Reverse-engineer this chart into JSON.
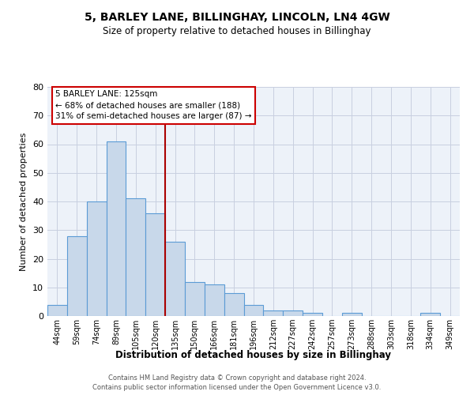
{
  "title1": "5, BARLEY LANE, BILLINGHAY, LINCOLN, LN4 4GW",
  "title2": "Size of property relative to detached houses in Billinghay",
  "xlabel": "Distribution of detached houses by size in Billinghay",
  "ylabel": "Number of detached properties",
  "categories": [
    "44sqm",
    "59sqm",
    "74sqm",
    "89sqm",
    "105sqm",
    "120sqm",
    "135sqm",
    "150sqm",
    "166sqm",
    "181sqm",
    "196sqm",
    "212sqm",
    "227sqm",
    "242sqm",
    "257sqm",
    "273sqm",
    "288sqm",
    "303sqm",
    "318sqm",
    "334sqm",
    "349sqm"
  ],
  "values": [
    4,
    28,
    40,
    61,
    41,
    36,
    26,
    12,
    11,
    8,
    4,
    2,
    2,
    1,
    0,
    1,
    0,
    0,
    0,
    1,
    0
  ],
  "bar_color": "#c8d8ea",
  "bar_edgecolor": "#5b9bd5",
  "grid_color": "#c8cfe0",
  "bg_color": "#edf2f9",
  "annotation_box_text": [
    "5 BARLEY LANE: 125sqm",
    "← 68% of detached houses are smaller (188)",
    "31% of semi-detached houses are larger (87) →"
  ],
  "annotation_box_color": "#cc0000",
  "red_line_x": 5.5,
  "ylim": [
    0,
    80
  ],
  "yticks": [
    0,
    10,
    20,
    30,
    40,
    50,
    60,
    70,
    80
  ],
  "footer1": "Contains HM Land Registry data © Crown copyright and database right 2024.",
  "footer2": "Contains public sector information licensed under the Open Government Licence v3.0."
}
